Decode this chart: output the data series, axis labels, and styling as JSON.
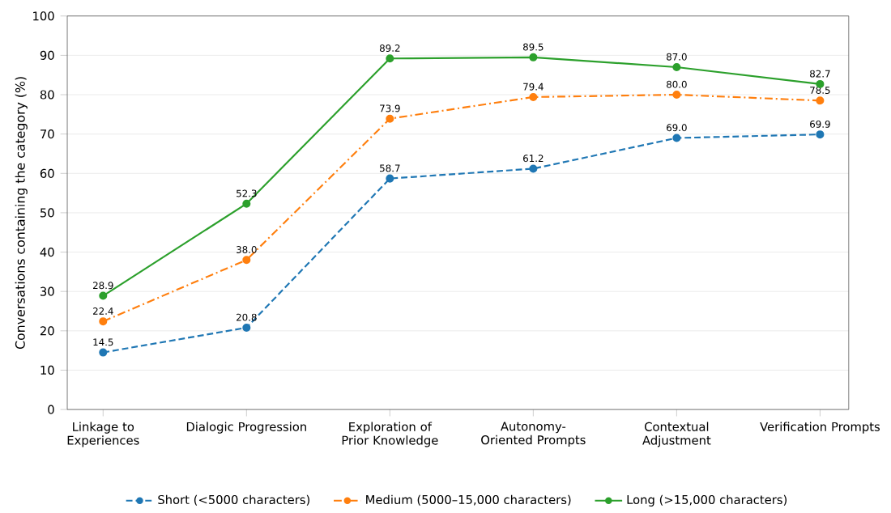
{
  "chart_data": {
    "type": "line",
    "ylabel": "Conversations containing the category (%)",
    "categories": [
      "Linkage to Experiences",
      "Dialogic Progression",
      "Exploration of Prior Knowledge",
      "Autonomy-Oriented Prompts",
      "Contextual Adjustment",
      "Verification Prompts"
    ],
    "series": [
      {
        "name": "Short (<5000 characters)",
        "color": "#1f77b4",
        "line_style": "dashed",
        "values": [
          14.5,
          20.8,
          58.7,
          61.2,
          69.0,
          69.9
        ],
        "value_labels": [
          "14.5",
          "20.8",
          "58.7",
          "61.2",
          "69.0",
          "69.9"
        ]
      },
      {
        "name": "Medium (5000–15,000 characters)",
        "color": "#ff7f0e",
        "line_style": "dashdot",
        "values": [
          22.4,
          38.0,
          73.9,
          79.4,
          80.0,
          78.5
        ],
        "value_labels": [
          "22.4",
          "38.0",
          "73.9",
          "79.4",
          "80.0",
          "78.5"
        ]
      },
      {
        "name": "Long (>15,000 characters)",
        "color": "#2ca02c",
        "line_style": "solid",
        "values": [
          28.9,
          52.3,
          89.2,
          89.5,
          87.0,
          82.7
        ],
        "value_labels": [
          "28.9",
          "52.3",
          "89.2",
          "89.5",
          "87.0",
          "82.7"
        ]
      }
    ],
    "ylim": [
      0,
      100
    ],
    "yticks": [
      0,
      10,
      20,
      30,
      40,
      50,
      60,
      70,
      80,
      90,
      100
    ],
    "grid": "y",
    "marker": "circle",
    "legend": "bottom"
  }
}
